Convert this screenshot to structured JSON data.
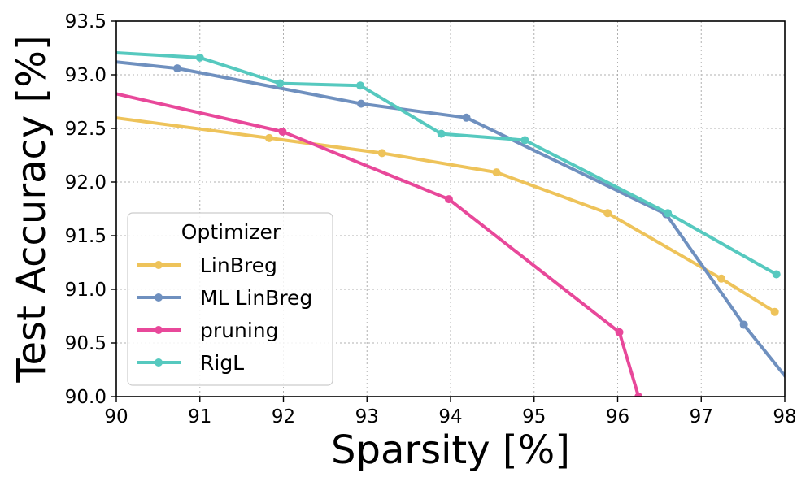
{
  "chart_data": {
    "type": "line",
    "title": "",
    "xlabel": "Sparsity [%]",
    "ylabel": "Test Accuracy [%]",
    "xlim": [
      90,
      98
    ],
    "ylim": [
      90.0,
      93.5
    ],
    "xticks": [
      "90",
      "91",
      "92",
      "93",
      "94",
      "95",
      "96",
      "97",
      "98"
    ],
    "yticks": [
      "90.0",
      "90.5",
      "91.0",
      "91.5",
      "92.0",
      "92.5",
      "93.0",
      "93.5"
    ],
    "grid": true,
    "legend_title": "Optimizer",
    "legend_position": "lower-left",
    "series": [
      {
        "name": "LinBreg",
        "color": "#eec35a",
        "x": [
          89.0,
          91.83,
          93.18,
          94.55,
          95.88,
          97.24,
          97.88
        ],
        "y": [
          92.7,
          92.41,
          92.27,
          92.09,
          91.71,
          91.1,
          90.79
        ]
      },
      {
        "name": "ML LinBreg",
        "color": "#6f90bf",
        "x": [
          89.0,
          90.73,
          92.93,
          94.19,
          96.58,
          97.51,
          98.2
        ],
        "y": [
          93.2,
          93.06,
          92.73,
          92.6,
          91.7,
          90.67,
          90.0
        ]
      },
      {
        "name": "pruning",
        "color": "#e8489a",
        "x": [
          89.0,
          91.99,
          93.98,
          96.02,
          96.25
        ],
        "y": [
          93.0,
          92.47,
          91.84,
          90.6,
          90.0
        ]
      },
      {
        "name": "RigL",
        "color": "#56c9bf",
        "x": [
          89.0,
          91.0,
          91.96,
          92.92,
          93.89,
          94.89,
          96.6,
          97.9
        ],
        "y": [
          93.25,
          93.16,
          92.92,
          92.9,
          92.45,
          92.39,
          91.71,
          91.14
        ]
      }
    ]
  }
}
